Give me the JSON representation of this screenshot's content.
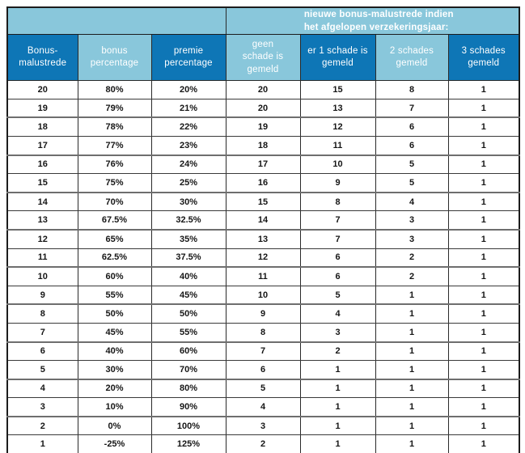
{
  "colors": {
    "dark_blue": "#0e76b6",
    "light_blue": "#89c7db",
    "header_text": "#ffffff",
    "body_text": "#161616"
  },
  "header": {
    "span_title": "nieuwe bonus-malustrede indien\nhet afgelopen verzekeringsjaar:",
    "columns": [
      {
        "label": "Bonus-\nmalustrede"
      },
      {
        "label": "bonus\npercentage"
      },
      {
        "label": "premie\npercentage"
      },
      {
        "label": "geen\nschade is\ngemeld"
      },
      {
        "label": "er 1 schade is\ngemeld"
      },
      {
        "label": "2 schades\ngemeld"
      },
      {
        "label": "3 schades\ngemeld"
      }
    ]
  },
  "rows": [
    [
      "20",
      "80%",
      "20%",
      "20",
      "15",
      "8",
      "1"
    ],
    [
      "19",
      "79%",
      "21%",
      "20",
      "13",
      "7",
      "1"
    ],
    [
      "18",
      "78%",
      "22%",
      "19",
      "12",
      "6",
      "1"
    ],
    [
      "17",
      "77%",
      "23%",
      "18",
      "11",
      "6",
      "1"
    ],
    [
      "16",
      "76%",
      "24%",
      "17",
      "10",
      "5",
      "1"
    ],
    [
      "15",
      "75%",
      "25%",
      "16",
      "9",
      "5",
      "1"
    ],
    [
      "14",
      "70%",
      "30%",
      "15",
      "8",
      "4",
      "1"
    ],
    [
      "13",
      "67.5%",
      "32.5%",
      "14",
      "7",
      "3",
      "1"
    ],
    [
      "12",
      "65%",
      "35%",
      "13",
      "7",
      "3",
      "1"
    ],
    [
      "11",
      "62.5%",
      "37.5%",
      "12",
      "6",
      "2",
      "1"
    ],
    [
      "10",
      "60%",
      "40%",
      "11",
      "6",
      "2",
      "1"
    ],
    [
      "9",
      "55%",
      "45%",
      "10",
      "5",
      "1",
      "1"
    ],
    [
      "8",
      "50%",
      "50%",
      "9",
      "4",
      "1",
      "1"
    ],
    [
      "7",
      "45%",
      "55%",
      "8",
      "3",
      "1",
      "1"
    ],
    [
      "6",
      "40%",
      "60%",
      "7",
      "2",
      "1",
      "1"
    ],
    [
      "5",
      "30%",
      "70%",
      "6",
      "1",
      "1",
      "1"
    ],
    [
      "4",
      "20%",
      "80%",
      "5",
      "1",
      "1",
      "1"
    ],
    [
      "3",
      "10%",
      "90%",
      "4",
      "1",
      "1",
      "1"
    ],
    [
      "2",
      "0%",
      "100%",
      "3",
      "1",
      "1",
      "1"
    ],
    [
      "1",
      "-25%",
      "125%",
      "2",
      "1",
      "1",
      "1"
    ]
  ]
}
